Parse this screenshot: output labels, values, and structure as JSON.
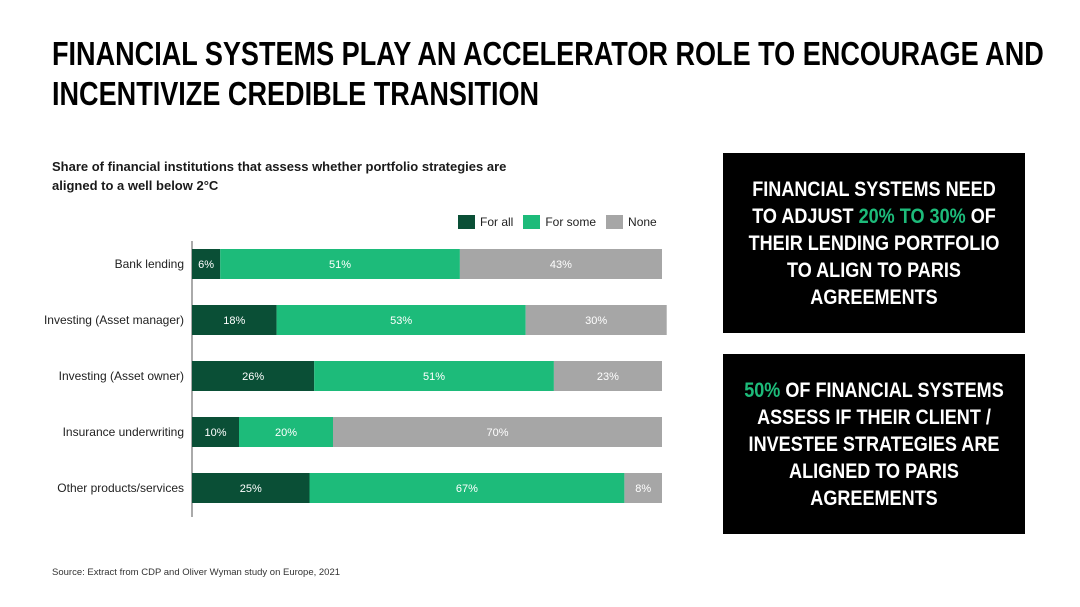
{
  "title": {
    "line1": "FINANCIAL SYSTEMS PLAY AN ACCELERATOR ROLE TO ENCOURAGE AND",
    "line2": "INCENTIVIZE CREDIBLE TRANSITION"
  },
  "colors": {
    "for_all": "#0a4f36",
    "for_some": "#1dbb7a",
    "none": "#a6a6a6",
    "highlight": "#1dbb7a"
  },
  "chart_data": {
    "type": "bar",
    "orientation": "horizontal",
    "stacked": true,
    "title": "Share of financial institutions that assess whether portfolio strategies are aligned to a well below 2°C",
    "categories": [
      "Bank lending",
      "Investing (Asset manager)",
      "Investing (Asset owner)",
      "Insurance underwriting",
      "Other products/services"
    ],
    "series": [
      {
        "name": "For all",
        "values": [
          6,
          18,
          26,
          10,
          25
        ]
      },
      {
        "name": "For some",
        "values": [
          51,
          53,
          51,
          20,
          67
        ]
      },
      {
        "name": "None",
        "values": [
          43,
          30,
          23,
          70,
          8
        ]
      }
    ],
    "value_suffix": "%",
    "legend_position": "top-right",
    "grid": false
  },
  "box1": {
    "before": "FINANCIAL SYSTEMS NEED TO ADJUST ",
    "highlight": "20% TO 30%",
    "after": " OF THEIR LENDING PORTFOLIO TO ALIGN TO PARIS AGREEMENTS"
  },
  "box2": {
    "highlight": "50%",
    "after": " OF FINANCIAL SYSTEMS ASSESS IF THEIR CLIENT / INVESTEE STRATEGIES ARE ALIGNED TO PARIS AGREEMENTS"
  },
  "source": "Source: Extract from CDP and Oliver Wyman study on Europe, 2021"
}
